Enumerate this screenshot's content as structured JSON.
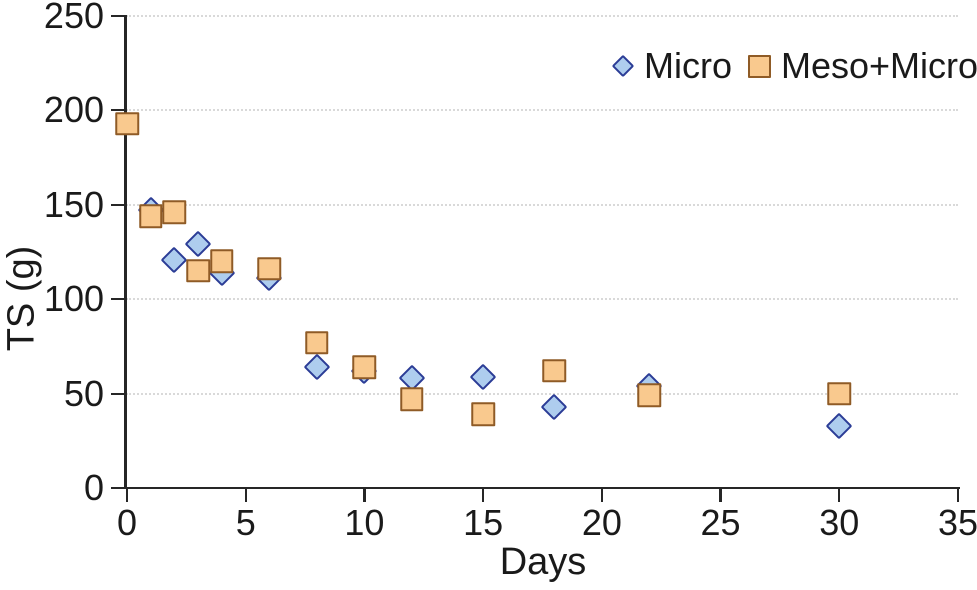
{
  "figure": {
    "background": "#ffffff",
    "text_color": "#1a1a1a"
  },
  "chart_data": {
    "type": "scatter",
    "title": "",
    "xlabel": "Days",
    "ylabel": "TS (g)",
    "xlim": [
      0,
      35
    ],
    "ylim": [
      0,
      250
    ],
    "x_ticks": [
      0,
      5,
      10,
      15,
      20,
      25,
      30,
      35
    ],
    "y_ticks": [
      0,
      50,
      100,
      150,
      200,
      250
    ],
    "grid": "horizontal dotted lines at every y tick",
    "gridline_color": "#d9d9d9",
    "legend_position": "top-right inside plot",
    "series": [
      {
        "name": "Micro",
        "marker": "diamond",
        "fill_color": "#aecdee",
        "stroke_color": "#2b3c96",
        "points": [
          {
            "x": 1,
            "y": 147
          },
          {
            "x": 2,
            "y": 121
          },
          {
            "x": 3,
            "y": 129
          },
          {
            "x": 4,
            "y": 114
          },
          {
            "x": 6,
            "y": 111
          },
          {
            "x": 8,
            "y": 64
          },
          {
            "x": 10,
            "y": 62
          },
          {
            "x": 12,
            "y": 58
          },
          {
            "x": 15,
            "y": 59
          },
          {
            "x": 18,
            "y": 43
          },
          {
            "x": 22,
            "y": 54
          },
          {
            "x": 30,
            "y": 33
          }
        ]
      },
      {
        "name": "Meso+Micro",
        "marker": "square",
        "fill_color": "#f9c98e",
        "stroke_color": "#8f5b26",
        "points": [
          {
            "x": 0,
            "y": 193
          },
          {
            "x": 1,
            "y": 144
          },
          {
            "x": 2,
            "y": 146
          },
          {
            "x": 3,
            "y": 115
          },
          {
            "x": 4,
            "y": 120
          },
          {
            "x": 6,
            "y": 116
          },
          {
            "x": 8,
            "y": 77
          },
          {
            "x": 10,
            "y": 64
          },
          {
            "x": 12,
            "y": 47
          },
          {
            "x": 15,
            "y": 39
          },
          {
            "x": 18,
            "y": 62
          },
          {
            "x": 22,
            "y": 49
          },
          {
            "x": 30,
            "y": 50
          }
        ]
      }
    ]
  }
}
